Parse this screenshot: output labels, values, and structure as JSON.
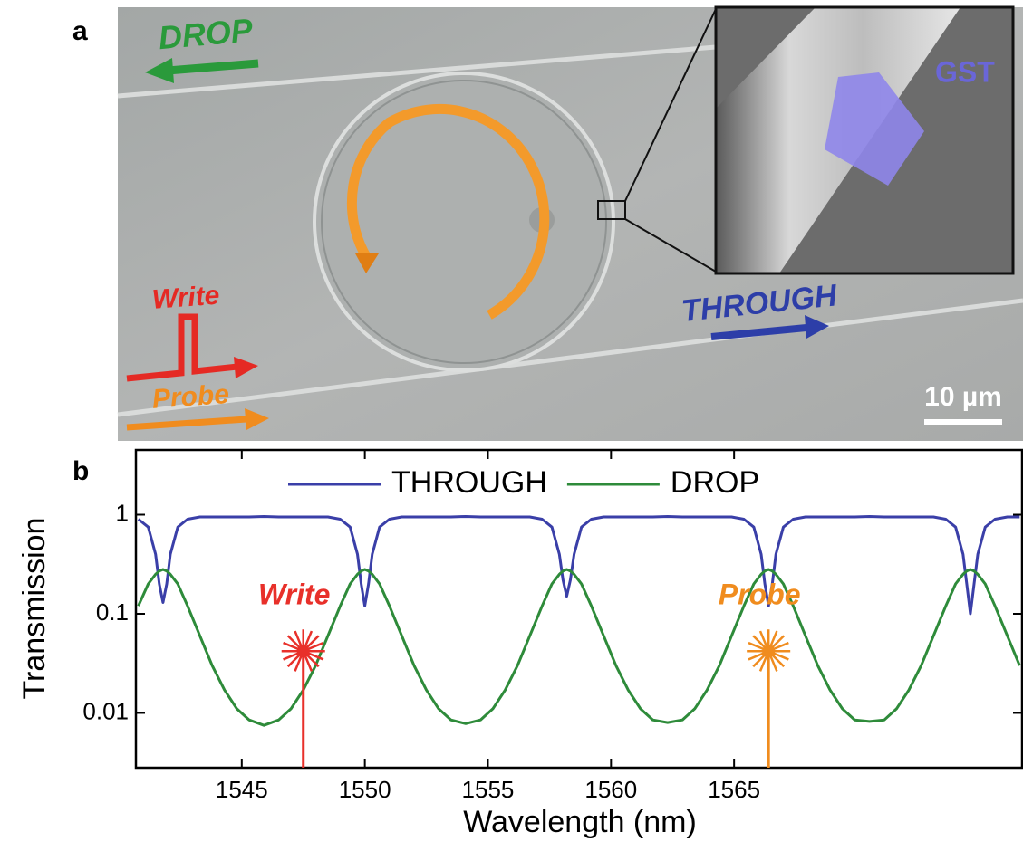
{
  "panel_a": {
    "label": "a",
    "drop": "DROP",
    "write": "Write",
    "probe": "Probe",
    "through": "THROUGH",
    "gst": "GST",
    "scale_bar": "10 µm"
  },
  "panel_b_label": "b",
  "chart_data": {
    "type": "line",
    "x_label": "Wavelength (nm)",
    "y_label": "Transmission",
    "ylog": true,
    "legend": "top",
    "xlim": [
      1540.7,
      1576.7
    ],
    "ylim": [
      0.0028,
      4.5
    ],
    "xticks": [
      1545,
      1550,
      1555,
      1560,
      1565
    ],
    "yticks": [
      0.01,
      0.1,
      1
    ],
    "x": [
      1540.8,
      1541.2,
      1541.5,
      1541.65,
      1541.8,
      1541.95,
      1542.1,
      1542.4,
      1542.8,
      1543.3,
      1543.8,
      1544.3,
      1544.8,
      1545.3,
      1545.9,
      1546.5,
      1547.0,
      1547.5,
      1548.0,
      1548.5,
      1549.0,
      1549.4,
      1549.7,
      1549.85,
      1550.0,
      1550.15,
      1550.3,
      1550.6,
      1551.0,
      1551.5,
      1552.0,
      1552.5,
      1553.0,
      1553.5,
      1554.1,
      1554.7,
      1555.2,
      1555.7,
      1556.2,
      1556.7,
      1557.2,
      1557.6,
      1557.9,
      1558.05,
      1558.2,
      1558.35,
      1558.5,
      1558.8,
      1559.2,
      1559.7,
      1560.2,
      1560.7,
      1561.2,
      1561.7,
      1562.3,
      1562.9,
      1563.4,
      1563.9,
      1564.4,
      1564.9,
      1565.4,
      1565.8,
      1566.1,
      1566.25,
      1566.4,
      1566.55,
      1566.7,
      1567.0,
      1567.4,
      1567.9,
      1568.4,
      1568.9,
      1569.4,
      1569.9,
      1570.5,
      1571.1,
      1571.6,
      1572.1,
      1572.6,
      1573.1,
      1573.6,
      1574.0,
      1574.3,
      1574.45,
      1574.6,
      1574.75,
      1574.9,
      1575.2,
      1575.6,
      1576.1,
      1576.6
    ],
    "series": [
      {
        "name": "THROUGH",
        "color": "#3a3fa8",
        "values": [
          0.9,
          0.75,
          0.4,
          0.2,
          0.13,
          0.2,
          0.4,
          0.75,
          0.9,
          0.95,
          0.95,
          0.95,
          0.95,
          0.95,
          0.96,
          0.95,
          0.95,
          0.95,
          0.95,
          0.95,
          0.9,
          0.75,
          0.4,
          0.2,
          0.12,
          0.2,
          0.4,
          0.75,
          0.9,
          0.95,
          0.95,
          0.95,
          0.95,
          0.95,
          0.96,
          0.95,
          0.95,
          0.95,
          0.95,
          0.95,
          0.9,
          0.75,
          0.4,
          0.22,
          0.15,
          0.22,
          0.4,
          0.75,
          0.9,
          0.95,
          0.95,
          0.95,
          0.95,
          0.95,
          0.96,
          0.95,
          0.95,
          0.95,
          0.95,
          0.95,
          0.9,
          0.75,
          0.4,
          0.2,
          0.12,
          0.2,
          0.4,
          0.75,
          0.9,
          0.95,
          0.95,
          0.95,
          0.95,
          0.95,
          0.96,
          0.95,
          0.95,
          0.95,
          0.95,
          0.95,
          0.9,
          0.75,
          0.4,
          0.2,
          0.1,
          0.2,
          0.4,
          0.75,
          0.9,
          0.95,
          0.95
        ]
      },
      {
        "name": "DROP",
        "color": "#2e8b3a",
        "values": [
          0.12,
          0.2,
          0.25,
          0.27,
          0.28,
          0.27,
          0.25,
          0.2,
          0.12,
          0.06,
          0.03,
          0.017,
          0.011,
          0.0085,
          0.0075,
          0.0085,
          0.011,
          0.017,
          0.03,
          0.06,
          0.12,
          0.2,
          0.25,
          0.27,
          0.28,
          0.27,
          0.25,
          0.2,
          0.12,
          0.06,
          0.03,
          0.017,
          0.011,
          0.0085,
          0.0078,
          0.0085,
          0.011,
          0.017,
          0.03,
          0.06,
          0.12,
          0.2,
          0.25,
          0.27,
          0.28,
          0.27,
          0.25,
          0.2,
          0.12,
          0.06,
          0.03,
          0.017,
          0.011,
          0.0085,
          0.008,
          0.0085,
          0.011,
          0.017,
          0.03,
          0.06,
          0.12,
          0.2,
          0.25,
          0.27,
          0.28,
          0.27,
          0.25,
          0.2,
          0.12,
          0.06,
          0.03,
          0.017,
          0.011,
          0.0085,
          0.0082,
          0.0085,
          0.011,
          0.017,
          0.03,
          0.06,
          0.12,
          0.2,
          0.25,
          0.27,
          0.28,
          0.27,
          0.25,
          0.2,
          0.12,
          0.06,
          0.03
        ]
      }
    ],
    "annotations": [
      {
        "text": "Write",
        "x": 1547.5,
        "y": 0.042,
        "color": "#e8302a"
      },
      {
        "text": "Probe",
        "x": 1566.4,
        "y": 0.042,
        "color": "#f08c1e"
      }
    ]
  }
}
